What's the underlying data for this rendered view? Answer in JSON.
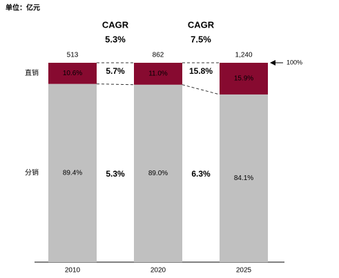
{
  "chart_data": {
    "type": "stacked_bar_100",
    "unit": "单位：亿元",
    "categories": [
      "2010",
      "2020",
      "2025"
    ],
    "totals": {
      "values": [
        513,
        862,
        1240
      ],
      "value_labels": [
        "513",
        "862",
        "1,240"
      ]
    },
    "series": [
      {
        "name": "分销",
        "color": "#c0c0c0",
        "values": [
          89.4,
          89.0,
          84.1
        ],
        "value_labels": [
          "89.4%",
          "89.0%",
          "84.1%"
        ]
      },
      {
        "name": "直销",
        "color": "#870a30",
        "values": [
          10.6,
          11.0,
          15.9
        ],
        "value_labels": [
          "10.6%",
          "11.0%",
          "15.9%"
        ]
      }
    ],
    "cagr": [
      {
        "title": "CAGR",
        "total": "5.3%",
        "direct": "5.7%",
        "distribution": "5.3%"
      },
      {
        "title": "CAGR",
        "total": "7.5%",
        "direct": "15.8%",
        "distribution": "6.3%"
      }
    ],
    "ylim": [
      0,
      100
    ],
    "yticks": [
      {
        "value": 100,
        "label": "100%"
      }
    ]
  }
}
